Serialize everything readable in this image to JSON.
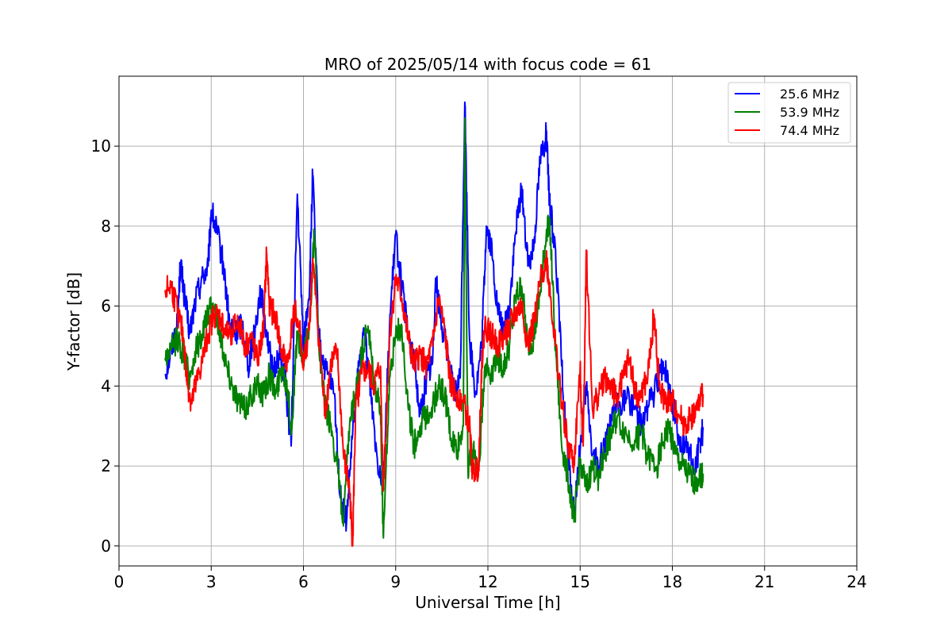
{
  "chart_data": {
    "type": "line",
    "title": "MRO of 2025/05/14 with focus code = 61",
    "xlabel": "Universal Time [h]",
    "ylabel": "Y-factor [dB]",
    "xlim": [
      0,
      24
    ],
    "ylim": [
      -0.5,
      11.75
    ],
    "xticks": [
      0,
      3,
      6,
      9,
      12,
      15,
      18,
      21,
      24
    ],
    "yticks": [
      0,
      2,
      4,
      6,
      8,
      10
    ],
    "grid": true,
    "legend_position": "top-right",
    "series": [
      {
        "name": "25.6 MHz",
        "color": "#0000ff",
        "points": [
          [
            1.5,
            4.3
          ],
          [
            1.7,
            4.9
          ],
          [
            1.9,
            5.6
          ],
          [
            2.0,
            7.1
          ],
          [
            2.1,
            6.4
          ],
          [
            2.3,
            5.3
          ],
          [
            2.5,
            6.2
          ],
          [
            2.7,
            6.7
          ],
          [
            2.9,
            7.0
          ],
          [
            3.0,
            8.4
          ],
          [
            3.2,
            7.8
          ],
          [
            3.4,
            7.0
          ],
          [
            3.6,
            5.5
          ],
          [
            3.8,
            5.3
          ],
          [
            4.0,
            5.6
          ],
          [
            4.2,
            4.5
          ],
          [
            4.4,
            5.3
          ],
          [
            4.6,
            6.4
          ],
          [
            4.8,
            5.4
          ],
          [
            5.0,
            4.3
          ],
          [
            5.2,
            4.8
          ],
          [
            5.4,
            4.2
          ],
          [
            5.6,
            2.5
          ],
          [
            5.8,
            8.8
          ],
          [
            6.0,
            5.0
          ],
          [
            6.2,
            6.5
          ],
          [
            6.3,
            9.3
          ],
          [
            6.5,
            5.2
          ],
          [
            6.7,
            4.4
          ],
          [
            7.0,
            3.8
          ],
          [
            7.2,
            1.2
          ],
          [
            7.4,
            0.6
          ],
          [
            7.6,
            2.8
          ],
          [
            7.8,
            4.5
          ],
          [
            8.0,
            5.3
          ],
          [
            8.2,
            3.8
          ],
          [
            8.4,
            2.2
          ],
          [
            8.6,
            1.6
          ],
          [
            8.8,
            5.5
          ],
          [
            9.0,
            7.8
          ],
          [
            9.2,
            6.5
          ],
          [
            9.4,
            5.3
          ],
          [
            9.6,
            4.6
          ],
          [
            9.8,
            3.3
          ],
          [
            10.0,
            4.2
          ],
          [
            10.2,
            4.6
          ],
          [
            10.3,
            6.7
          ],
          [
            10.5,
            5.5
          ],
          [
            10.7,
            4.8
          ],
          [
            10.9,
            3.7
          ],
          [
            11.1,
            4.2
          ],
          [
            11.25,
            11.1
          ],
          [
            11.4,
            5.2
          ],
          [
            11.6,
            3.8
          ],
          [
            11.8,
            5.0
          ],
          [
            11.95,
            8.0
          ],
          [
            12.1,
            7.5
          ],
          [
            12.3,
            6.0
          ],
          [
            12.5,
            5.3
          ],
          [
            12.7,
            6.0
          ],
          [
            12.9,
            7.8
          ],
          [
            13.1,
            9.0
          ],
          [
            13.3,
            7.0
          ],
          [
            13.5,
            7.6
          ],
          [
            13.7,
            9.7
          ],
          [
            13.9,
            10.3
          ],
          [
            14.0,
            8.6
          ],
          [
            14.2,
            7.4
          ],
          [
            14.4,
            4.5
          ],
          [
            14.6,
            2.2
          ],
          [
            14.8,
            0.8
          ],
          [
            15.0,
            2.4
          ],
          [
            15.2,
            4.0
          ],
          [
            15.4,
            2.3
          ],
          [
            15.6,
            2.0
          ],
          [
            15.8,
            2.6
          ],
          [
            16.0,
            3.0
          ],
          [
            16.2,
            3.5
          ],
          [
            16.5,
            3.7
          ],
          [
            16.8,
            3.5
          ],
          [
            17.0,
            3.0
          ],
          [
            17.2,
            3.5
          ],
          [
            17.5,
            4.0
          ],
          [
            17.7,
            4.6
          ],
          [
            17.9,
            4.0
          ],
          [
            18.1,
            3.2
          ],
          [
            18.3,
            2.4
          ],
          [
            18.5,
            2.6
          ],
          [
            18.7,
            1.8
          ],
          [
            18.9,
            2.6
          ],
          [
            19.0,
            2.9
          ]
        ]
      },
      {
        "name": "53.9 MHz",
        "color": "#008000",
        "points": [
          [
            1.5,
            4.7
          ],
          [
            1.7,
            4.9
          ],
          [
            1.9,
            5.2
          ],
          [
            2.1,
            4.8
          ],
          [
            2.3,
            4.2
          ],
          [
            2.5,
            4.9
          ],
          [
            2.7,
            5.3
          ],
          [
            2.9,
            5.8
          ],
          [
            3.1,
            6.0
          ],
          [
            3.3,
            5.3
          ],
          [
            3.5,
            4.5
          ],
          [
            3.7,
            4.0
          ],
          [
            3.9,
            3.6
          ],
          [
            4.1,
            3.4
          ],
          [
            4.3,
            3.8
          ],
          [
            4.5,
            4.0
          ],
          [
            4.7,
            3.8
          ],
          [
            4.9,
            4.3
          ],
          [
            5.1,
            3.8
          ],
          [
            5.3,
            4.5
          ],
          [
            5.5,
            3.9
          ],
          [
            5.6,
            2.8
          ],
          [
            5.8,
            5.3
          ],
          [
            6.0,
            4.6
          ],
          [
            6.2,
            5.6
          ],
          [
            6.35,
            7.8
          ],
          [
            6.5,
            5.0
          ],
          [
            6.7,
            3.5
          ],
          [
            6.9,
            3.0
          ],
          [
            7.1,
            2.0
          ],
          [
            7.3,
            0.5
          ],
          [
            7.5,
            3.0
          ],
          [
            7.7,
            3.8
          ],
          [
            7.9,
            4.8
          ],
          [
            8.1,
            5.5
          ],
          [
            8.3,
            4.0
          ],
          [
            8.5,
            3.5
          ],
          [
            8.6,
            0.2
          ],
          [
            8.8,
            4.2
          ],
          [
            9.0,
            5.3
          ],
          [
            9.2,
            5.5
          ],
          [
            9.4,
            3.5
          ],
          [
            9.6,
            2.5
          ],
          [
            9.8,
            3.0
          ],
          [
            10.0,
            3.3
          ],
          [
            10.2,
            3.5
          ],
          [
            10.4,
            4.0
          ],
          [
            10.6,
            3.8
          ],
          [
            10.8,
            2.7
          ],
          [
            11.0,
            2.4
          ],
          [
            11.2,
            3.0
          ],
          [
            11.25,
            10.7
          ],
          [
            11.35,
            2.0
          ],
          [
            11.5,
            2.4
          ],
          [
            11.7,
            1.9
          ],
          [
            11.9,
            4.5
          ],
          [
            12.1,
            4.3
          ],
          [
            12.3,
            4.8
          ],
          [
            12.5,
            4.4
          ],
          [
            12.7,
            5.0
          ],
          [
            12.9,
            6.2
          ],
          [
            13.1,
            6.5
          ],
          [
            13.3,
            5.0
          ],
          [
            13.5,
            5.2
          ],
          [
            13.7,
            6.3
          ],
          [
            13.9,
            7.8
          ],
          [
            14.0,
            8.2
          ],
          [
            14.2,
            5.0
          ],
          [
            14.4,
            2.5
          ],
          [
            14.6,
            1.8
          ],
          [
            14.8,
            0.6
          ],
          [
            15.0,
            2.2
          ],
          [
            15.2,
            1.4
          ],
          [
            15.4,
            2.0
          ],
          [
            15.6,
            1.7
          ],
          [
            15.8,
            2.3
          ],
          [
            16.0,
            2.8
          ],
          [
            16.2,
            3.2
          ],
          [
            16.5,
            2.8
          ],
          [
            16.8,
            2.6
          ],
          [
            17.0,
            2.9
          ],
          [
            17.2,
            2.2
          ],
          [
            17.5,
            2.0
          ],
          [
            17.7,
            2.6
          ],
          [
            17.9,
            3.0
          ],
          [
            18.1,
            2.3
          ],
          [
            18.3,
            2.0
          ],
          [
            18.5,
            1.8
          ],
          [
            18.7,
            1.6
          ],
          [
            18.9,
            1.8
          ],
          [
            19.0,
            1.8
          ]
        ]
      },
      {
        "name": "74.4 MHz",
        "color": "#ff0000",
        "points": [
          [
            1.5,
            6.4
          ],
          [
            1.7,
            6.5
          ],
          [
            1.9,
            5.9
          ],
          [
            2.1,
            5.2
          ],
          [
            2.2,
            4.2
          ],
          [
            2.35,
            3.6
          ],
          [
            2.5,
            4.0
          ],
          [
            2.7,
            4.6
          ],
          [
            2.9,
            5.3
          ],
          [
            3.1,
            5.8
          ],
          [
            3.3,
            5.7
          ],
          [
            3.5,
            5.3
          ],
          [
            3.7,
            5.4
          ],
          [
            3.9,
            5.6
          ],
          [
            4.1,
            5.0
          ],
          [
            4.3,
            5.2
          ],
          [
            4.5,
            4.6
          ],
          [
            4.7,
            5.4
          ],
          [
            4.8,
            7.3
          ],
          [
            4.9,
            6.0
          ],
          [
            5.1,
            5.7
          ],
          [
            5.3,
            4.8
          ],
          [
            5.5,
            4.6
          ],
          [
            5.7,
            6.0
          ],
          [
            5.9,
            5.3
          ],
          [
            6.0,
            4.4
          ],
          [
            6.2,
            5.6
          ],
          [
            6.3,
            7.2
          ],
          [
            6.5,
            5.2
          ],
          [
            6.7,
            3.3
          ],
          [
            6.9,
            4.6
          ],
          [
            7.1,
            4.8
          ],
          [
            7.3,
            2.3
          ],
          [
            7.5,
            1.4
          ],
          [
            7.6,
            0.0
          ],
          [
            7.7,
            3.5
          ],
          [
            7.9,
            4.3
          ],
          [
            8.1,
            4.4
          ],
          [
            8.3,
            4.0
          ],
          [
            8.5,
            4.5
          ],
          [
            8.6,
            1.4
          ],
          [
            8.8,
            5.2
          ],
          [
            9.0,
            6.7
          ],
          [
            9.2,
            6.2
          ],
          [
            9.4,
            5.2
          ],
          [
            9.6,
            4.5
          ],
          [
            9.8,
            4.8
          ],
          [
            10.0,
            4.5
          ],
          [
            10.2,
            5.0
          ],
          [
            10.4,
            6.2
          ],
          [
            10.6,
            5.3
          ],
          [
            10.8,
            4.0
          ],
          [
            11.0,
            3.8
          ],
          [
            11.2,
            3.6
          ],
          [
            11.4,
            3.0
          ],
          [
            11.5,
            1.8
          ],
          [
            11.7,
            2.0
          ],
          [
            11.8,
            4.6
          ],
          [
            11.9,
            5.5
          ],
          [
            12.1,
            5.3
          ],
          [
            12.3,
            5.0
          ],
          [
            12.5,
            5.2
          ],
          [
            12.7,
            5.5
          ],
          [
            12.9,
            5.8
          ],
          [
            13.1,
            6.0
          ],
          [
            13.3,
            5.0
          ],
          [
            13.5,
            5.6
          ],
          [
            13.7,
            6.6
          ],
          [
            13.9,
            7.2
          ],
          [
            14.0,
            6.5
          ],
          [
            14.2,
            5.0
          ],
          [
            14.4,
            3.6
          ],
          [
            14.6,
            2.6
          ],
          [
            14.8,
            2.0
          ],
          [
            15.0,
            4.5
          ],
          [
            15.1,
            2.5
          ],
          [
            15.2,
            7.4
          ],
          [
            15.4,
            3.4
          ],
          [
            15.6,
            3.8
          ],
          [
            15.8,
            4.2
          ],
          [
            16.0,
            4.0
          ],
          [
            16.2,
            3.7
          ],
          [
            16.4,
            4.2
          ],
          [
            16.6,
            4.7
          ],
          [
            16.8,
            3.8
          ],
          [
            17.0,
            3.8
          ],
          [
            17.2,
            4.2
          ],
          [
            17.4,
            5.8
          ],
          [
            17.6,
            3.8
          ],
          [
            17.8,
            3.6
          ],
          [
            18.0,
            3.6
          ],
          [
            18.2,
            3.3
          ],
          [
            18.4,
            3.0
          ],
          [
            18.6,
            3.2
          ],
          [
            18.8,
            3.4
          ],
          [
            19.0,
            3.8
          ]
        ]
      }
    ]
  }
}
